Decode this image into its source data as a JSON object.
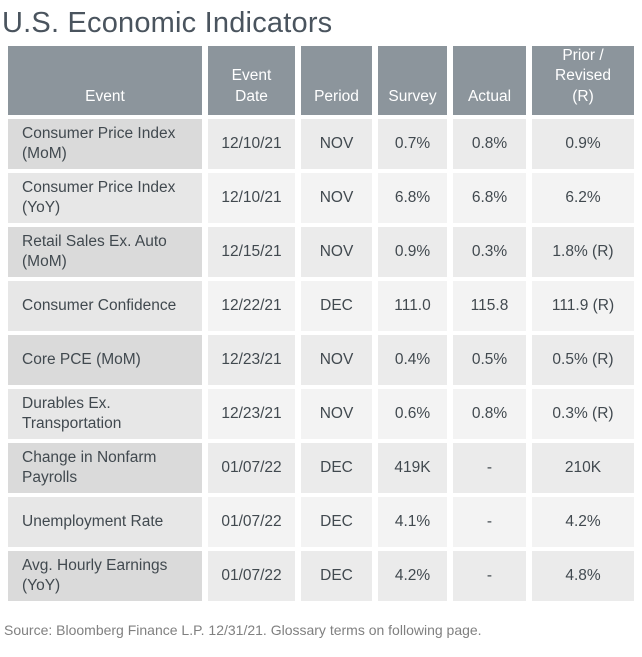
{
  "title": "U.S. Economic Indicators",
  "source_note": "Source: Bloomberg Finance L.P. 12/31/21. Glossary terms on following page.",
  "colors": {
    "title_text": "#4a545e",
    "header_bg": "#8c959c",
    "header_text": "#ffffff",
    "cell_text": "#41494f",
    "row_odd_event_bg": "#dadada",
    "row_odd_data_bg": "#ebebeb",
    "row_even_event_bg": "#e7e7e7",
    "row_even_data_bg": "#f3f3f3",
    "source_text": "#808080"
  },
  "table": {
    "columns": [
      {
        "key": "event",
        "label": "Event"
      },
      {
        "key": "date",
        "label": "Event\nDate"
      },
      {
        "key": "period",
        "label": "Period"
      },
      {
        "key": "survey",
        "label": "Survey"
      },
      {
        "key": "actual",
        "label": "Actual"
      },
      {
        "key": "prior",
        "label": "Prior /\nRevised\n(R)"
      }
    ],
    "rows": [
      {
        "event": "Consumer Price Index (MoM)",
        "date": "12/10/21",
        "period": "NOV",
        "survey": "0.7%",
        "actual": "0.8%",
        "prior": "0.9%"
      },
      {
        "event": "Consumer Price Index (YoY)",
        "date": "12/10/21",
        "period": "NOV",
        "survey": "6.8%",
        "actual": "6.8%",
        "prior": "6.2%"
      },
      {
        "event": "Retail Sales Ex. Auto (MoM)",
        "date": "12/15/21",
        "period": "NOV",
        "survey": "0.9%",
        "actual": "0.3%",
        "prior": "1.8% (R)"
      },
      {
        "event": "Consumer Confidence",
        "date": "12/22/21",
        "period": "DEC",
        "survey": "111.0",
        "actual": "115.8",
        "prior": "111.9 (R)"
      },
      {
        "event": "Core PCE (MoM)",
        "date": "12/23/21",
        "period": "NOV",
        "survey": "0.4%",
        "actual": "0.5%",
        "prior": "0.5% (R)"
      },
      {
        "event": "Durables Ex. Transportation",
        "date": "12/23/21",
        "period": "NOV",
        "survey": "0.6%",
        "actual": "0.8%",
        "prior": "0.3% (R)"
      },
      {
        "event": "Change in Nonfarm Payrolls",
        "date": "01/07/22",
        "period": "DEC",
        "survey": "419K",
        "actual": "-",
        "prior": "210K"
      },
      {
        "event": "Unemployment Rate",
        "date": "01/07/22",
        "period": "DEC",
        "survey": "4.1%",
        "actual": "-",
        "prior": "4.2%"
      },
      {
        "event": "Avg. Hourly Earnings (YoY)",
        "date": "01/07/22",
        "period": "DEC",
        "survey": "4.2%",
        "actual": "-",
        "prior": "4.8%"
      }
    ]
  }
}
